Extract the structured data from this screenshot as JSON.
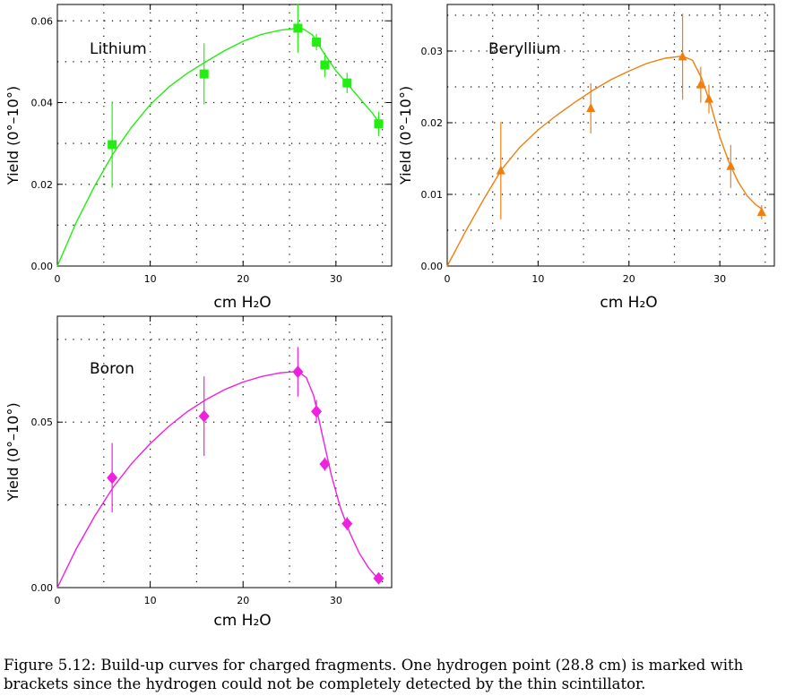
{
  "caption": "Figure 5.12: Build-up curves for charged fragments. One hydrogen point (28.8 cm) is marked with brackets since the hydrogen could not be completely detected by the thin scintillator.",
  "chart_data": [
    {
      "type": "scatter",
      "label": "Lithium",
      "xlabel": "cm  H₂O",
      "ylabel": "Yield  (0°–10°)",
      "xlim": [
        0,
        36
      ],
      "ylim": [
        0,
        0.064
      ],
      "xticks": [
        0,
        10,
        20,
        30
      ],
      "xticklabels": [
        "0",
        "10",
        "20",
        "30"
      ],
      "yticks": [
        0,
        0.02,
        0.04,
        0.06
      ],
      "yticklabels": [
        "0.00",
        "0.02",
        "0.04",
        "0.06"
      ],
      "grid": true,
      "color": "#22ee11",
      "marker": "square",
      "points": [
        {
          "x": 5.9,
          "y": 0.0297,
          "err": 0.0105
        },
        {
          "x": 15.8,
          "y": 0.047,
          "err": 0.0075
        },
        {
          "x": 25.9,
          "y": 0.0582,
          "err": 0.006
        },
        {
          "x": 27.9,
          "y": 0.0548,
          "err": 0.002
        },
        {
          "x": 28.8,
          "y": 0.0492,
          "err": 0.003
        },
        {
          "x": 31.2,
          "y": 0.0448,
          "err": 0.0025
        },
        {
          "x": 34.6,
          "y": 0.0348,
          "err": 0.003
        }
      ],
      "curve": [
        [
          0,
          0
        ],
        [
          2,
          0.0105
        ],
        [
          4,
          0.0195
        ],
        [
          6,
          0.0275
        ],
        [
          8,
          0.034
        ],
        [
          10,
          0.0395
        ],
        [
          12,
          0.0438
        ],
        [
          14,
          0.0472
        ],
        [
          16,
          0.05
        ],
        [
          18,
          0.0527
        ],
        [
          20,
          0.055
        ],
        [
          22,
          0.0567
        ],
        [
          24,
          0.0577
        ],
        [
          25.5,
          0.0581
        ],
        [
          26.5,
          0.058
        ],
        [
          27.5,
          0.0565
        ],
        [
          28.5,
          0.0528
        ],
        [
          30,
          0.0478
        ],
        [
          32,
          0.0425
        ],
        [
          34,
          0.0372
        ],
        [
          34.6,
          0.0352
        ]
      ]
    },
    {
      "type": "scatter",
      "label": "Beryllium",
      "xlabel": "cm  H₂O",
      "ylabel": "Yield  (0°–10°)",
      "xlim": [
        0,
        36
      ],
      "ylim": [
        0,
        0.0365
      ],
      "xticks": [
        0,
        10,
        20,
        30
      ],
      "xticklabels": [
        "0",
        "10",
        "20",
        "30"
      ],
      "yticks": [
        0,
        0.01,
        0.02,
        0.03
      ],
      "yticklabels": [
        "0.00",
        "0.01",
        "0.02",
        "0.03"
      ],
      "grid": true,
      "color": "#f07f10",
      "marker": "triangle",
      "points": [
        {
          "x": 5.9,
          "y": 0.0133,
          "err": 0.0068
        },
        {
          "x": 15.8,
          "y": 0.022,
          "err": 0.0035
        },
        {
          "x": 25.9,
          "y": 0.0292,
          "err": 0.006
        },
        {
          "x": 27.9,
          "y": 0.0253,
          "err": 0.0025
        },
        {
          "x": 28.8,
          "y": 0.0233,
          "err": 0.002
        },
        {
          "x": 31.2,
          "y": 0.0139,
          "err": 0.003
        },
        {
          "x": 34.6,
          "y": 0.0075,
          "err": 0.001
        }
      ],
      "curve": [
        [
          0,
          0
        ],
        [
          2,
          0.0048
        ],
        [
          4,
          0.0093
        ],
        [
          6,
          0.0135
        ],
        [
          8,
          0.0166
        ],
        [
          10,
          0.019
        ],
        [
          12,
          0.021
        ],
        [
          14,
          0.0228
        ],
        [
          16,
          0.0245
        ],
        [
          18,
          0.026
        ],
        [
          20,
          0.0272
        ],
        [
          22,
          0.0283
        ],
        [
          24,
          0.029
        ],
        [
          25.9,
          0.0293
        ],
        [
          27,
          0.0287
        ],
        [
          28,
          0.0262
        ],
        [
          29,
          0.0225
        ],
        [
          30,
          0.018
        ],
        [
          31,
          0.0145
        ],
        [
          32,
          0.0118
        ],
        [
          33,
          0.0098
        ],
        [
          34,
          0.0085
        ],
        [
          34.6,
          0.008
        ]
      ]
    },
    {
      "type": "scatter",
      "label": "Boron",
      "xlabel": "cm  H₂O",
      "ylabel": "Yield  (0°–10°)",
      "xlim": [
        0,
        36
      ],
      "ylim": [
        0,
        0.082
      ],
      "xticks": [
        0,
        10,
        20,
        30
      ],
      "xticklabels": [
        "0",
        "10",
        "20",
        "30"
      ],
      "yticks": [
        0,
        0.05
      ],
      "yticklabels": [
        "0.00",
        "0.05"
      ],
      "grid": true,
      "color": "#f020e0",
      "marker": "diamond",
      "points": [
        {
          "x": 5.9,
          "y": 0.0332,
          "err": 0.0105
        },
        {
          "x": 15.8,
          "y": 0.0518,
          "err": 0.012
        },
        {
          "x": 25.9,
          "y": 0.0652,
          "err": 0.0075
        },
        {
          "x": 27.9,
          "y": 0.0532,
          "err": 0.0035
        },
        {
          "x": 28.8,
          "y": 0.0373,
          "err": 0.002
        },
        {
          "x": 31.2,
          "y": 0.0193,
          "err": 0.002
        },
        {
          "x": 34.6,
          "y": 0.0028,
          "err": 0.0005
        }
      ],
      "curve": [
        [
          0,
          0
        ],
        [
          2,
          0.0115
        ],
        [
          4,
          0.0215
        ],
        [
          6,
          0.0303
        ],
        [
          8,
          0.0375
        ],
        [
          10,
          0.0435
        ],
        [
          12,
          0.0487
        ],
        [
          14,
          0.0532
        ],
        [
          16,
          0.0568
        ],
        [
          18,
          0.0598
        ],
        [
          20,
          0.0621
        ],
        [
          22,
          0.0638
        ],
        [
          24,
          0.0649
        ],
        [
          25.9,
          0.0653
        ],
        [
          26.8,
          0.0635
        ],
        [
          27.6,
          0.058
        ],
        [
          28.5,
          0.0465
        ],
        [
          29.5,
          0.034
        ],
        [
          30.5,
          0.024
        ],
        [
          31.5,
          0.0165
        ],
        [
          32.5,
          0.0105
        ],
        [
          33.5,
          0.006
        ],
        [
          34.6,
          0.0025
        ]
      ]
    }
  ]
}
